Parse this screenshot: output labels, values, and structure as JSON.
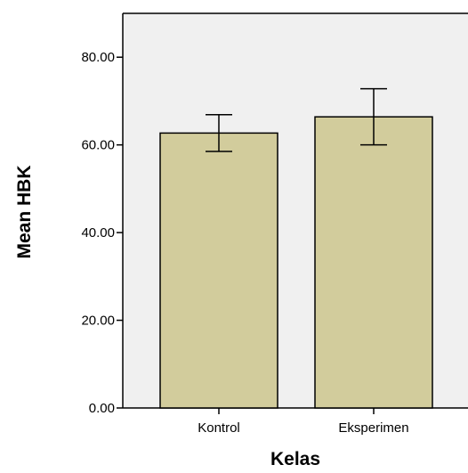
{
  "chart_data": {
    "type": "bar",
    "categories": [
      "Kontrol",
      "Eksperimen"
    ],
    "values": [
      62.7,
      66.4
    ],
    "error_bars": [
      {
        "low": 58.5,
        "high": 66.9
      },
      {
        "low": 60.0,
        "high": 72.8
      }
    ],
    "xlabel": "Kelas",
    "ylabel": "Mean HBK",
    "ylim": [
      0,
      90
    ],
    "yticks": [
      0,
      20,
      40,
      60,
      80
    ],
    "ytick_labels": [
      "0.00",
      "20.00",
      "40.00",
      "60.00",
      "80.00"
    ],
    "bar_color": "#d2cc9c",
    "plot_background": "#f0f0f0",
    "grid": false
  }
}
